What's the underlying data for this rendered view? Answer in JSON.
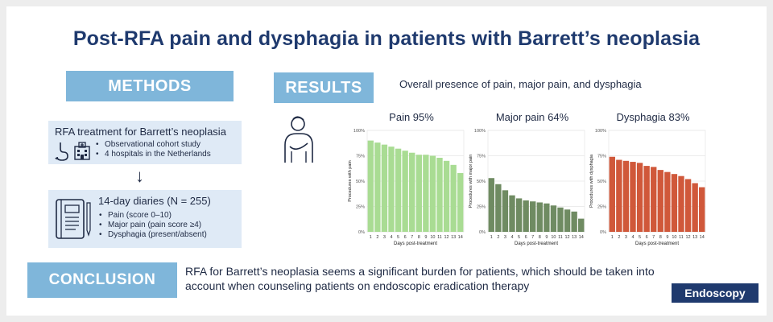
{
  "title": "Post-RFA pain and dysphagia in patients with Barrett’s neoplasia",
  "methods": {
    "label": "METHODS",
    "box1": {
      "title": "RFA treatment for Barrett’s neoplasia",
      "bullets": [
        "Observational cohort study",
        "4 hospitals in the Netherlands"
      ]
    },
    "box2": {
      "title": "14-day diaries (N = 255)",
      "bullets": [
        "Pain (score 0–10)",
        "Major pain (pain score ≥4)",
        "Dysphagia (present/absent)"
      ]
    }
  },
  "results": {
    "label": "RESULTS",
    "subtitle": "Overall presence of pain, major pain, and dysphagia"
  },
  "conclusion": {
    "label": "CONCLUSION",
    "text": "RFA for Barrett’s neoplasia seems a significant burden for patients, which should be taken into account when counseling patients on endoscopic eradication therapy"
  },
  "brand": "Endoscopy",
  "colors": {
    "pain": "#a9dc93",
    "major_pain": "#6f8b62",
    "dysphagia": "#d0583a",
    "accent": "#7fb6da",
    "title": "#1f3a6e"
  },
  "icons": [
    "stomach-icon",
    "hospital-icon",
    "arrow-down-icon",
    "diary-icon",
    "patient-icon"
  ],
  "chart_data": [
    {
      "type": "bar",
      "title": "Pain 95%",
      "xlabel": "Days post-treatment",
      "ylabel": "Procedures with pain",
      "categories": [
        "1",
        "2",
        "3",
        "4",
        "5",
        "6",
        "7",
        "8",
        "9",
        "10",
        "11",
        "12",
        "13",
        "14"
      ],
      "values": [
        90,
        88,
        86,
        84,
        82,
        80,
        78,
        76,
        76,
        75,
        73,
        70,
        66,
        58
      ],
      "ylim": [
        0,
        100
      ],
      "yticks": [
        "0%",
        "25%",
        "50%",
        "75%",
        "100%"
      ],
      "grid": true
    },
    {
      "type": "bar",
      "title": "Major pain 64%",
      "xlabel": "Days post-treatment",
      "ylabel": "Procedures with major pain",
      "categories": [
        "1",
        "2",
        "3",
        "4",
        "5",
        "6",
        "7",
        "8",
        "9",
        "10",
        "11",
        "12",
        "13",
        "14"
      ],
      "values": [
        53,
        47,
        41,
        36,
        33,
        31,
        30,
        29,
        28,
        26,
        24,
        22,
        20,
        13
      ],
      "ylim": [
        0,
        100
      ],
      "yticks": [
        "0%",
        "25%",
        "50%",
        "75%",
        "100%"
      ],
      "grid": true
    },
    {
      "type": "bar",
      "title": "Dysphagia 83%",
      "xlabel": "Days post-treatment",
      "ylabel": "Procedures with dysphagia",
      "categories": [
        "1",
        "2",
        "3",
        "4",
        "5",
        "6",
        "7",
        "8",
        "9",
        "10",
        "11",
        "12",
        "13",
        "14"
      ],
      "values": [
        74,
        71,
        70,
        69,
        68,
        65,
        64,
        61,
        59,
        57,
        55,
        52,
        48,
        44
      ],
      "ylim": [
        0,
        100
      ],
      "yticks": [
        "0%",
        "25%",
        "50%",
        "75%",
        "100%"
      ],
      "grid": true
    }
  ]
}
